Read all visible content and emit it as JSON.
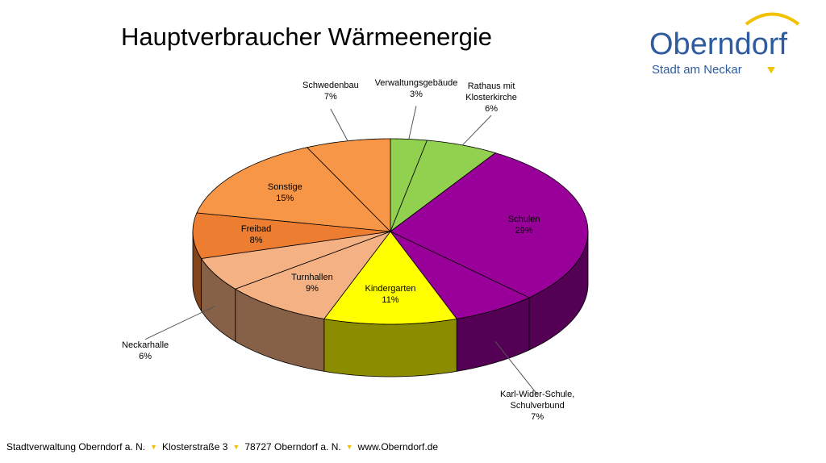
{
  "chart_data": {
    "type": "pie3d",
    "title": "Hauptverbraucher Wärmeenergie",
    "categories": [
      "Verwaltungsgebäude",
      "Rathaus mit\nKlosterkirche",
      "Schulen",
      "Karl-Wider-Schule,\nSchulverbund",
      "Kindergarten",
      "Turnhallen",
      "Neckarhalle",
      "Freibad",
      "Sonstige",
      "Schwedenbau"
    ],
    "values": [
      3,
      6,
      29,
      7,
      11,
      9,
      6,
      8,
      15,
      7
    ],
    "value_labels": [
      "3%",
      "6%",
      "29%",
      "7%",
      "11%",
      "9%",
      "6%",
      "8%",
      "15%",
      "7%"
    ],
    "colors": [
      "#92d050",
      "#92d050",
      "#990099",
      "#990099",
      "#ffff00",
      "#f4b183",
      "#f4b183",
      "#ed7d31",
      "#f79646",
      "#f79646"
    ]
  },
  "logo": {
    "name": "Oberndorf",
    "subtitle": "Stadt am Neckar"
  },
  "footer": [
    "Stadtverwaltung Oberndorf a. N.",
    "Klosterstraße 3",
    "78727 Oberndorf a. N.",
    "www.Oberndorf.de"
  ]
}
